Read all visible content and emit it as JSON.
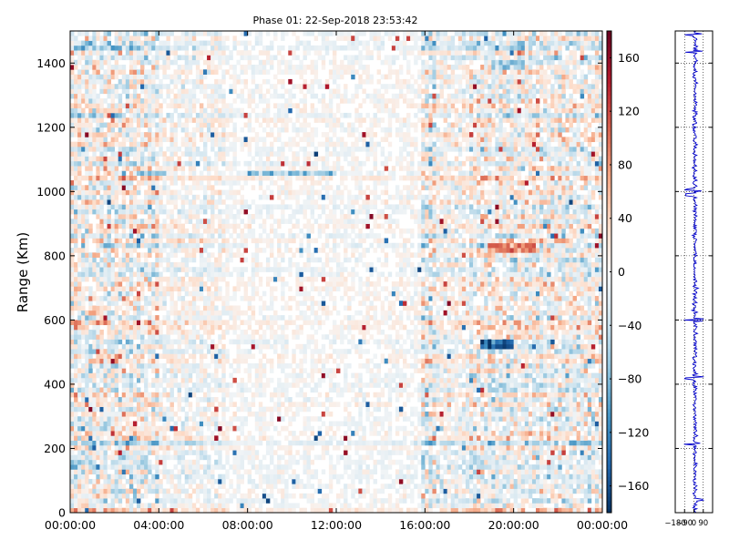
{
  "chart_data": [
    {
      "type": "heatmap",
      "title": "Phase 01: 22-Sep-2018 23:53:42",
      "xlabel": "",
      "ylabel": "Range (Km)",
      "x_tick_labels": [
        "00:00:00",
        "04:00:00",
        "08:00:00",
        "12:00:00",
        "16:00:00",
        "20:00:00",
        "00:00:00"
      ],
      "x_hours": [
        0,
        4,
        8,
        12,
        16,
        20,
        24
      ],
      "xlim_hours": [
        0,
        24
      ],
      "y_ticks": [
        0,
        200,
        400,
        600,
        800,
        1000,
        1200,
        1400
      ],
      "ylim": [
        0,
        1500
      ],
      "range_gate_km": 15,
      "time_step_minutes": 10,
      "colorbar": {
        "colormap": "RdBu_r",
        "ticks": [
          -160,
          -120,
          -80,
          -40,
          0,
          40,
          80,
          120,
          160
        ],
        "tick_labels": [
          "−160",
          "−120",
          "−80",
          "−40",
          "0",
          "40",
          "80",
          "120",
          "160"
        ],
        "vmin": -180,
        "vmax": 180
      },
      "bands": [
        {
          "range_km": [
            510,
            540
          ],
          "hours": [
            18.5,
            20.0
          ],
          "value": -150
        },
        {
          "range_km": [
            810,
            840
          ],
          "hours": [
            18.8,
            21.0
          ],
          "value": 90
        },
        {
          "range_km": [
            1380,
            1410
          ],
          "hours": [
            19.0,
            20.5
          ],
          "value": -60
        },
        {
          "range_km": [
            1050,
            1065
          ],
          "hours": [
            3.0,
            4.2
          ],
          "value": -80
        },
        {
          "range_km": [
            1050,
            1065
          ],
          "hours": [
            8.0,
            12.0
          ],
          "value": -60
        }
      ]
    },
    {
      "type": "line",
      "x_tick_labels": [
        "−180",
        "−90",
        "0",
        "90"
      ],
      "x_ticks": [
        -180,
        -90,
        0,
        90
      ],
      "xlim": [
        -180,
        180
      ],
      "ylim": [
        0,
        1500
      ],
      "grid": true,
      "series_color": "#0000cc"
    }
  ]
}
